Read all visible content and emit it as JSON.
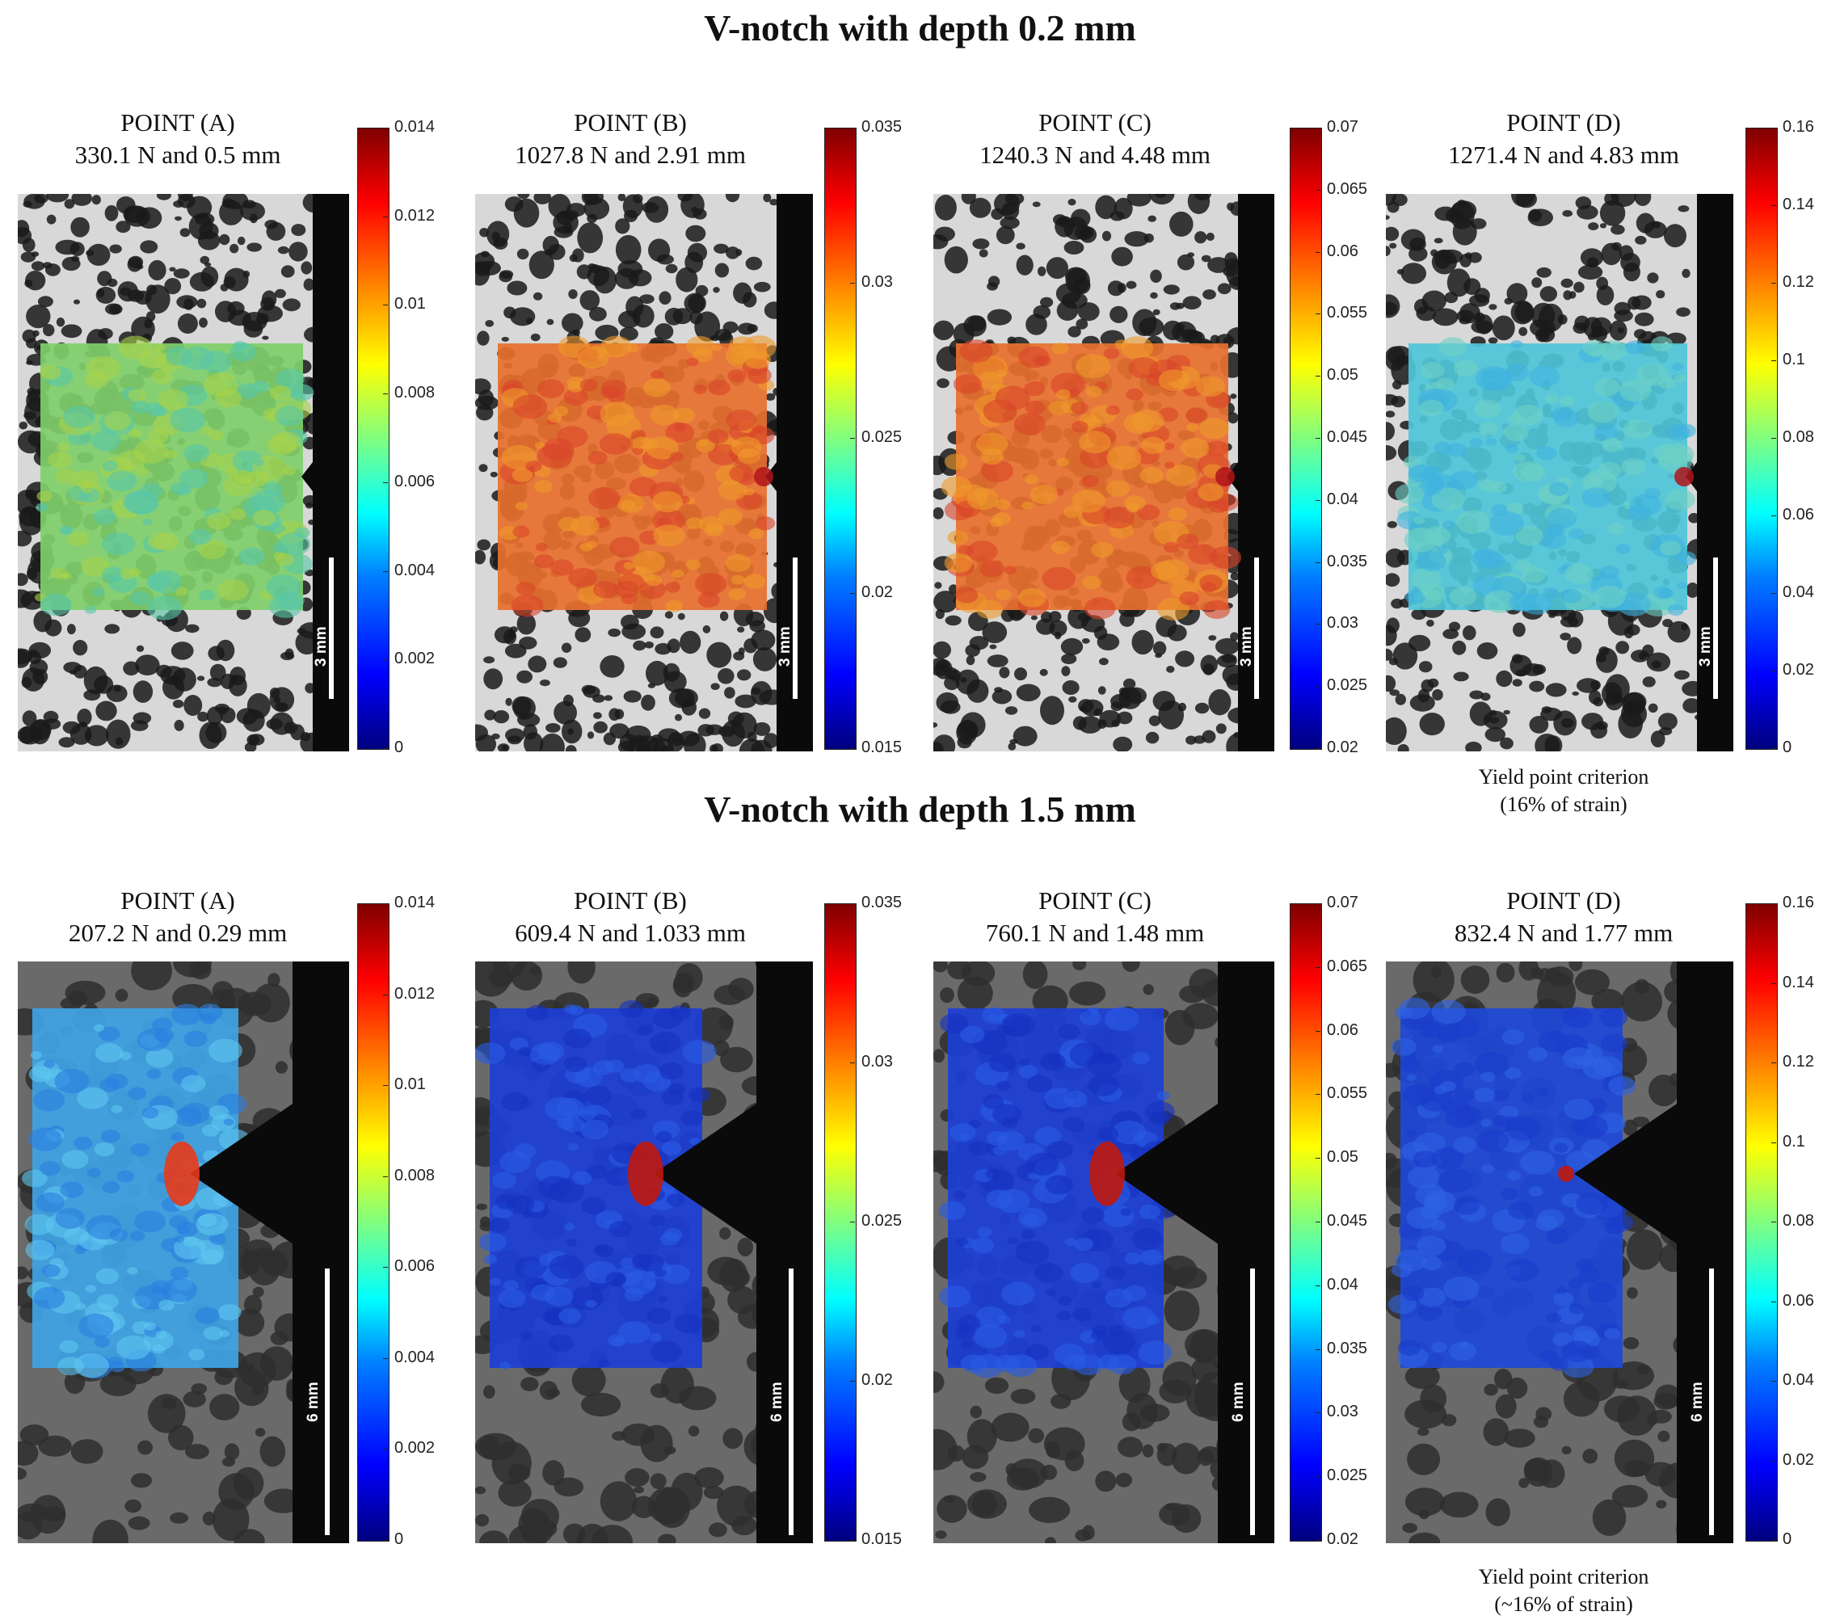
{
  "rows": [
    {
      "title": "V-notch with depth 0.2 mm",
      "note": [
        "Yield point criterion",
        "(16% of strain)"
      ],
      "panels": [
        {
          "point": "POINT (A)",
          "values": "330.1 N and 0.5 mm",
          "scale": "3 mm",
          "ticks": [
            "0.014",
            "0.012",
            "0.01",
            "0.008",
            "0.006",
            "0.004",
            "0.002",
            "0"
          ],
          "tick_values": [
            0.014,
            0.012,
            0.01,
            0.008,
            0.006,
            0.004,
            0.002,
            0
          ],
          "range": [
            0,
            0.014
          ],
          "map": "green"
        },
        {
          "point": "POINT (B)",
          "values": "1027.8 N and 2.91 mm",
          "scale": "3 mm",
          "ticks": [
            "0.035",
            "0.03",
            "0.025",
            "0.02",
            "0.015"
          ],
          "tick_values": [
            0.035,
            0.03,
            0.025,
            0.02,
            0.015
          ],
          "range": [
            0.015,
            0.035
          ],
          "map": "orange"
        },
        {
          "point": "POINT (C)",
          "values": "1240.3 N and 4.48 mm",
          "scale": "3 mm",
          "ticks": [
            "0.07",
            "0.065",
            "0.06",
            "0.055",
            "0.05",
            "0.045",
            "0.04",
            "0.035",
            "0.03",
            "0.025",
            "0.02"
          ],
          "tick_values": [
            0.07,
            0.065,
            0.06,
            0.055,
            0.05,
            0.045,
            0.04,
            0.035,
            0.03,
            0.025,
            0.02
          ],
          "range": [
            0.02,
            0.07
          ],
          "map": "orange"
        },
        {
          "point": "POINT (D)",
          "values": "1271.4 N and  4.83 mm",
          "scale": "3 mm",
          "ticks": [
            "0.16",
            "0.14",
            "0.12",
            "0.1",
            "0.08",
            "0.06",
            "0.04",
            "0.02",
            "0"
          ],
          "tick_values": [
            0.16,
            0.14,
            0.12,
            0.1,
            0.08,
            0.06,
            0.04,
            0.02,
            0
          ],
          "range": [
            0,
            0.16
          ],
          "map": "cyan"
        }
      ]
    },
    {
      "title": "V-notch with depth 1.5 mm",
      "note": [
        "Yield point criterion",
        "(~16% of strain)"
      ],
      "panels": [
        {
          "point": "POINT (A)",
          "values": "207.2 N and 0.29 mm",
          "scale": "6 mm",
          "ticks": [
            "0.014",
            "0.012",
            "0.01",
            "0.008",
            "0.006",
            "0.004",
            "0.002",
            "0"
          ],
          "tick_values": [
            0.014,
            0.012,
            0.01,
            0.008,
            0.006,
            0.004,
            0.002,
            0
          ],
          "range": [
            0,
            0.014
          ],
          "map": "lightblue"
        },
        {
          "point": "POINT (B)",
          "values": "609.4 N and 1.033 mm",
          "scale": "6 mm",
          "ticks": [
            "0.035",
            "0.03",
            "0.025",
            "0.02",
            "0.015"
          ],
          "tick_values": [
            0.035,
            0.03,
            0.025,
            0.02,
            0.015
          ],
          "range": [
            0.015,
            0.035
          ],
          "map": "blue"
        },
        {
          "point": "POINT (C)",
          "values": "760.1 N and 1.48 mm",
          "scale": "6 mm",
          "ticks": [
            "0.07",
            "0.065",
            "0.06",
            "0.055",
            "0.05",
            "0.045",
            "0.04",
            "0.035",
            "0.03",
            "0.025",
            "0.02"
          ],
          "tick_values": [
            0.07,
            0.065,
            0.06,
            0.055,
            0.05,
            0.045,
            0.04,
            0.035,
            0.03,
            0.025,
            0.02
          ],
          "range": [
            0.02,
            0.07
          ],
          "map": "blue"
        },
        {
          "point": "POINT (D)",
          "values": "832.4 N and 1.77 mm",
          "scale": "6 mm",
          "ticks": [
            "0.16",
            "0.14",
            "0.12",
            "0.1",
            "0.08",
            "0.06",
            "0.04",
            "0.02",
            "0"
          ],
          "tick_values": [
            0.16,
            0.14,
            0.12,
            0.1,
            0.08,
            0.06,
            0.04,
            0.02,
            0
          ],
          "range": [
            0,
            0.16
          ],
          "map": "deepblue"
        }
      ]
    }
  ]
}
